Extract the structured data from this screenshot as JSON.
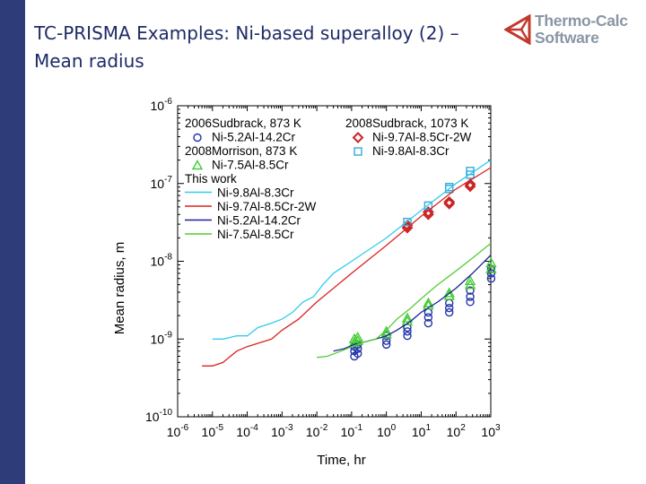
{
  "slide": {
    "title_line1": "TC-PRISMA Examples: Ni-based superalloy (2) –",
    "title_line2": "Mean radius"
  },
  "logo": {
    "line1": "Thermo-Calc",
    "line2": "Software",
    "icon": "triangle-logo-icon",
    "color_text": "#8a96a6",
    "color_mark": "#c0392b"
  },
  "chart_data": {
    "type": "scatter",
    "xlabel": "Time, hr",
    "ylabel": "Mean radius, m",
    "x_scale": "log",
    "y_scale": "log",
    "xlim": [
      1e-06,
      1000
    ],
    "ylim": [
      1e-10,
      1e-06
    ],
    "x_ticks": [
      1e-06,
      1e-05,
      0.0001,
      0.001,
      0.01,
      0.1,
      1,
      10,
      100,
      1000
    ],
    "x_tick_labels": [
      {
        "base": "10",
        "exp": "-6"
      },
      {
        "base": "10",
        "exp": "-5"
      },
      {
        "base": "10",
        "exp": "-4"
      },
      {
        "base": "10",
        "exp": "-3"
      },
      {
        "base": "10",
        "exp": "-2"
      },
      {
        "base": "10",
        "exp": "-1"
      },
      {
        "base": "10",
        "exp": "0"
      },
      {
        "base": "10",
        "exp": "1"
      },
      {
        "base": "10",
        "exp": "2"
      },
      {
        "base": "10",
        "exp": "3"
      }
    ],
    "y_ticks": [
      1e-10,
      1e-09,
      1e-08,
      1e-07,
      1e-06
    ],
    "y_tick_labels": [
      {
        "base": "10",
        "exp": "-10"
      },
      {
        "base": "10",
        "exp": "-9"
      },
      {
        "base": "10",
        "exp": "-8"
      },
      {
        "base": "10",
        "exp": "-7"
      },
      {
        "base": "10",
        "exp": "-6"
      }
    ],
    "grid": false,
    "legend_placement": "top-left",
    "legend_groups": [
      {
        "heading": "2006Sudbrack, 873 K"
      },
      {
        "heading": "2008Sudbrack, 1073 K"
      },
      {
        "heading": "2008Morrison, 873 K"
      },
      {
        "heading": "This work"
      }
    ],
    "series": [
      {
        "name": "Ni-5.2Al-14.2Cr",
        "kind": "marker",
        "marker": "circle",
        "color": "#2233aa",
        "points": [
          [
            0.12,
            6e-10
          ],
          [
            0.12,
            7e-10
          ],
          [
            0.12,
            8e-10
          ],
          [
            0.15,
            6.5e-10
          ],
          [
            0.15,
            7.5e-10
          ],
          [
            0.15,
            8.5e-10
          ],
          [
            1,
            8.5e-10
          ],
          [
            1,
            9.5e-10
          ],
          [
            1,
            1.1e-09
          ],
          [
            4,
            1.1e-09
          ],
          [
            4,
            1.25e-09
          ],
          [
            4,
            1.4e-09
          ],
          [
            16,
            1.6e-09
          ],
          [
            16,
            1.9e-09
          ],
          [
            16,
            2.2e-09
          ],
          [
            64,
            2.2e-09
          ],
          [
            64,
            2.5e-09
          ],
          [
            64,
            2.9e-09
          ],
          [
            256,
            3e-09
          ],
          [
            256,
            3.5e-09
          ],
          [
            256,
            4.2e-09
          ],
          [
            1024,
            6e-09
          ],
          [
            1024,
            7e-09
          ],
          [
            1024,
            8e-09
          ]
        ]
      },
      {
        "name": "Ni-9.7Al-8.5Cr-2W",
        "kind": "marker",
        "marker": "diamond",
        "color": "#cc2222",
        "points": [
          [
            4,
            2.7e-08
          ],
          [
            4,
            2.9e-08
          ],
          [
            16,
            4e-08
          ],
          [
            16,
            4.3e-08
          ],
          [
            64,
            5.5e-08
          ],
          [
            64,
            5.8e-08
          ],
          [
            256,
            9.2e-08
          ],
          [
            256,
            9.8e-08
          ]
        ]
      },
      {
        "name": "Ni-9.8Al-8.3Cr",
        "kind": "marker",
        "marker": "square",
        "color": "#33aadd",
        "points": [
          [
            4,
            3.2e-08
          ],
          [
            16,
            5.2e-08
          ],
          [
            64,
            8.5e-08
          ],
          [
            64,
            9e-08
          ],
          [
            256,
            1.3e-07
          ],
          [
            256,
            1.45e-07
          ]
        ]
      },
      {
        "name": "Ni-7.5Al-8.5Cr",
        "kind": "marker",
        "marker": "triangle",
        "color": "#44cc33",
        "points": [
          [
            0.12,
            9e-10
          ],
          [
            0.12,
            1e-09
          ],
          [
            0.15,
            9.5e-10
          ],
          [
            0.15,
            1.05e-09
          ],
          [
            1,
            1.15e-09
          ],
          [
            1,
            1.25e-09
          ],
          [
            4,
            1.7e-09
          ],
          [
            4,
            1.85e-09
          ],
          [
            16,
            2.7e-09
          ],
          [
            16,
            2.9e-09
          ],
          [
            64,
            3.6e-09
          ],
          [
            64,
            3.9e-09
          ],
          [
            256,
            5e-09
          ],
          [
            256,
            5.6e-09
          ],
          [
            1024,
            8e-09
          ],
          [
            1024,
            9.5e-09
          ]
        ]
      },
      {
        "name": "Ni-9.8Al-8.3Cr",
        "kind": "line",
        "color": "#33ccee",
        "points": [
          [
            1e-05,
            1e-09
          ],
          [
            2e-05,
            1e-09
          ],
          [
            5e-05,
            1.1e-09
          ],
          [
            0.0001,
            1.1e-09
          ],
          [
            0.0002,
            1.4e-09
          ],
          [
            0.0005,
            1.6e-09
          ],
          [
            0.001,
            1.8e-09
          ],
          [
            0.002,
            2.2e-09
          ],
          [
            0.004,
            3e-09
          ],
          [
            0.008,
            3.5e-09
          ],
          [
            0.015,
            5e-09
          ],
          [
            0.03,
            7e-09
          ],
          [
            0.1,
            1e-08
          ],
          [
            1,
            2e-08
          ],
          [
            10,
            4.5e-08
          ],
          [
            100,
            1e-07
          ],
          [
            1000,
            2e-07
          ]
        ]
      },
      {
        "name": "Ni-9.7Al-8.5Cr-2W",
        "kind": "line",
        "color": "#dd2222",
        "points": [
          [
            5e-06,
            4.5e-10
          ],
          [
            1e-05,
            4.5e-10
          ],
          [
            2e-05,
            5e-10
          ],
          [
            5e-05,
            7e-10
          ],
          [
            0.0001,
            8e-10
          ],
          [
            0.0005,
            1e-09
          ],
          [
            0.001,
            1.3e-09
          ],
          [
            0.003,
            1.8e-09
          ],
          [
            0.01,
            3e-09
          ],
          [
            0.1,
            7e-09
          ],
          [
            1,
            1.6e-08
          ],
          [
            10,
            3.8e-08
          ],
          [
            100,
            8.5e-08
          ],
          [
            1000,
            1.6e-07
          ]
        ]
      },
      {
        "name": "Ni-5.2Al-14.2Cr",
        "kind": "line",
        "color": "#1a2299",
        "points": [
          [
            0.03,
            7e-10
          ],
          [
            0.06,
            7.5e-10
          ],
          [
            0.12,
            8.5e-10
          ],
          [
            0.2,
            9e-10
          ],
          [
            0.5,
            1e-09
          ],
          [
            1,
            1.1e-09
          ],
          [
            2,
            1.3e-09
          ],
          [
            5,
            1.7e-09
          ],
          [
            10,
            2.2e-09
          ],
          [
            30,
            3e-09
          ],
          [
            100,
            4.5e-09
          ],
          [
            300,
            7e-09
          ],
          [
            1000,
            1.2e-08
          ]
        ]
      },
      {
        "name": "Ni-7.5Al-8.5Cr",
        "kind": "line",
        "color": "#55cc33",
        "points": [
          [
            0.01,
            5.8e-10
          ],
          [
            0.02,
            6e-10
          ],
          [
            0.05,
            7e-10
          ],
          [
            0.1,
            8e-10
          ],
          [
            0.2,
            9e-10
          ],
          [
            0.5,
            1e-09
          ],
          [
            1,
            1.3e-09
          ],
          [
            2,
            1.8e-09
          ],
          [
            5,
            2.5e-09
          ],
          [
            10,
            3.3e-09
          ],
          [
            30,
            5e-09
          ],
          [
            100,
            7.5e-09
          ],
          [
            300,
            1.1e-08
          ],
          [
            1000,
            1.7e-08
          ]
        ]
      }
    ]
  }
}
